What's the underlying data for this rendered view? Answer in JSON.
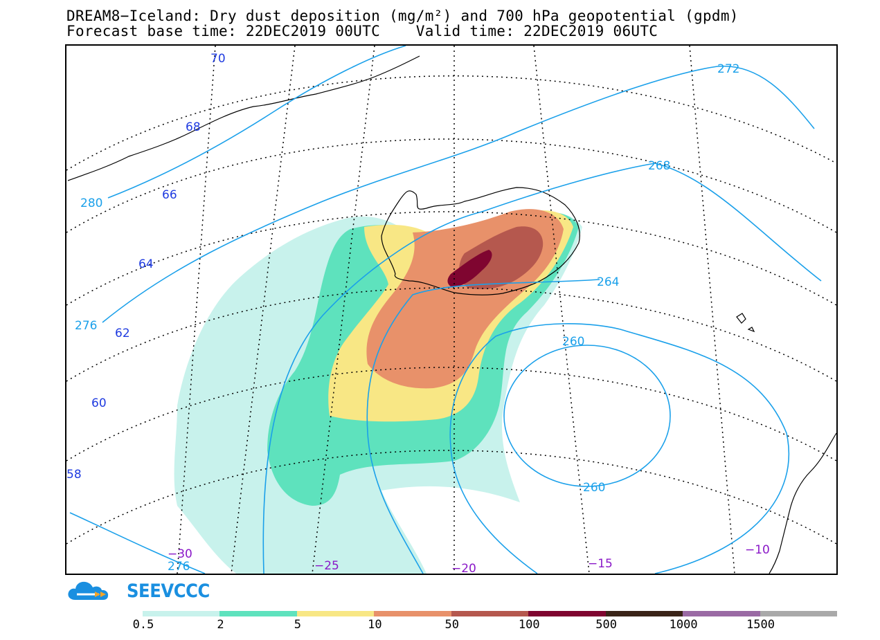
{
  "title": {
    "line1": "DREAM8−Iceland: Dry dust deposition (mg/m²) and 700 hPa geopotential (gpdm)",
    "line2": "Forecast base time: 22DEC2019 00UTC    Valid time: 22DEC2019 06UTC"
  },
  "map": {
    "latitude_labels": [
      "70",
      "68",
      "66",
      "64",
      "62",
      "60",
      "58"
    ],
    "longitude_labels": [
      "−30",
      "−25",
      "−20",
      "−15",
      "−10"
    ],
    "isoline_labels": [
      "272",
      "268",
      "280",
      "264",
      "276",
      "260",
      "260",
      "276"
    ],
    "colors": {
      "graticule": "#000000",
      "isoline": "#1aa0ea",
      "latitude_label": "#1f3be0",
      "longitude_label": "#8a18c8",
      "coastline": "#000000"
    }
  },
  "logo": {
    "text": "SEEVCCC",
    "icon": "cloud-logo-icon"
  },
  "legend": {
    "colors": [
      "#c8f2ec",
      "#5ee2bd",
      "#f8e785",
      "#e8916a",
      "#b5584e",
      "#7f0530",
      "#3a2418",
      "#9a6aa4",
      "#a9a9a9"
    ],
    "tick_labels": [
      "0.5",
      "2",
      "5",
      "10",
      "50",
      "100",
      "500",
      "1000",
      "1500"
    ]
  }
}
